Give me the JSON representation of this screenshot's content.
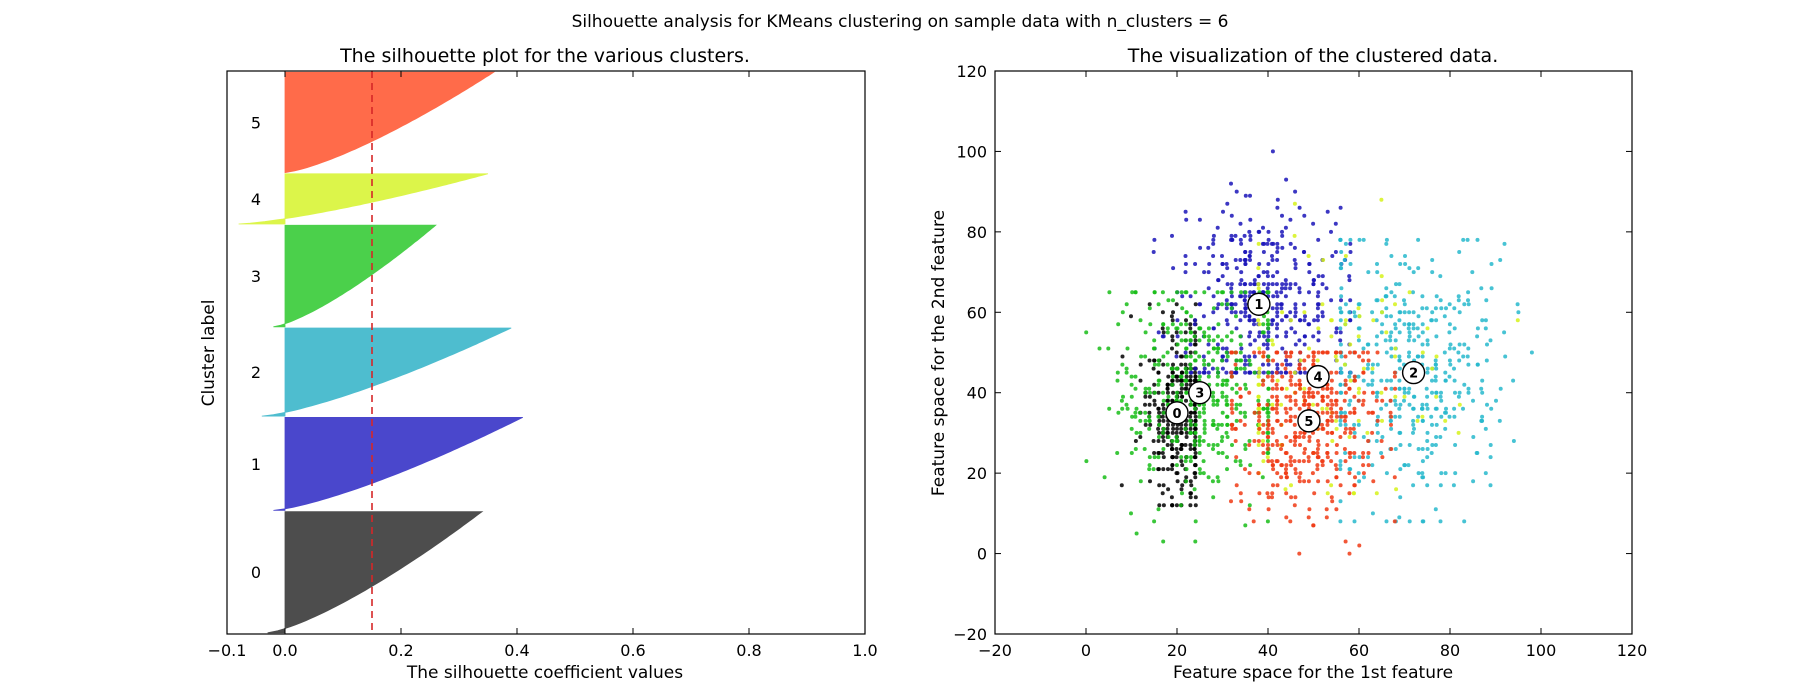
{
  "figure": {
    "suptitle": "Silhouette analysis for KMeans clustering on sample data with n_clusters = 6"
  },
  "chart_data": [
    {
      "type": "area",
      "title": "The silhouette plot for the various clusters.",
      "xlabel": "The silhouette coefficient values",
      "ylabel": "Cluster label",
      "xlim": [
        -0.1,
        1.0
      ],
      "xticks": [
        -0.1,
        0.0,
        0.2,
        0.4,
        0.6,
        0.8,
        1.0
      ],
      "xtick_labels": [
        "−0.1",
        "0.0",
        "0.2",
        "0.4",
        "0.6",
        "0.8",
        "1.0"
      ],
      "yticks": [],
      "grid": false,
      "average_silhouette": 0.15,
      "average_line_color": "#d62728",
      "clusters": [
        {
          "label": "0",
          "color": "#4d4d4d",
          "size": 990,
          "max": 0.34,
          "min": -0.03
        },
        {
          "label": "1",
          "color": "#4a47cc",
          "size": 760,
          "max": 0.41,
          "min": -0.02
        },
        {
          "label": "2",
          "color": "#4ebdcf",
          "size": 720,
          "max": 0.39,
          "min": -0.04
        },
        {
          "label": "3",
          "color": "#4bd04b",
          "size": 830,
          "max": 0.26,
          "min": -0.02
        },
        {
          "label": "4",
          "color": "#dcf54a",
          "size": 410,
          "max": 0.35,
          "min": -0.08
        },
        {
          "label": "5",
          "color": "#ff6b4a",
          "size": 820,
          "max": 0.36,
          "min": 0.0
        }
      ]
    },
    {
      "type": "scatter",
      "title": "The visualization of the clustered data.",
      "xlabel": "Feature space for the 1st feature",
      "ylabel": "Feature space for the 2nd feature",
      "xlim": [
        -20,
        120
      ],
      "ylim": [
        -20,
        120
      ],
      "xticks": [
        -20,
        0,
        20,
        40,
        60,
        80,
        100,
        120
      ],
      "xtick_labels": [
        "−20",
        "0",
        "20",
        "40",
        "60",
        "80",
        "100",
        "120"
      ],
      "yticks": [
        -20,
        0,
        20,
        40,
        60,
        80,
        100,
        120
      ],
      "ytick_labels": [
        "−20",
        "0",
        "20",
        "40",
        "60",
        "80",
        "100",
        "120"
      ],
      "grid": false,
      "centers": [
        {
          "label": "0",
          "x": 20,
          "y": 35
        },
        {
          "label": "1",
          "x": 38,
          "y": 62
        },
        {
          "label": "2",
          "x": 72,
          "y": 45
        },
        {
          "label": "3",
          "x": 25,
          "y": 40
        },
        {
          "label": "4",
          "x": 51,
          "y": 44
        },
        {
          "label": "5",
          "x": 49,
          "y": 33
        }
      ],
      "cluster_points": [
        {
          "label": "0",
          "color": "#000000",
          "count": 330,
          "x_range": [
            8,
            24
          ],
          "y_range": [
            12,
            62
          ]
        },
        {
          "label": "1",
          "color": "#1a14b8",
          "count": 420,
          "x_range": [
            15,
            58
          ],
          "y_range": [
            45,
            100
          ]
        },
        {
          "label": "2",
          "color": "#27b8cc",
          "count": 420,
          "x_range": [
            56,
            100
          ],
          "y_range": [
            8,
            78
          ]
        },
        {
          "label": "3",
          "color": "#18bd18",
          "count": 420,
          "x_range": [
            0,
            40
          ],
          "y_range": [
            3,
            65
          ]
        },
        {
          "label": "4",
          "color": "#d6f21a",
          "count": 120,
          "x_range": [
            38,
            95
          ],
          "y_range": [
            15,
            88
          ]
        },
        {
          "label": "5",
          "color": "#f03a14",
          "count": 420,
          "x_range": [
            32,
            68
          ],
          "y_range": [
            0,
            50
          ]
        }
      ]
    }
  ]
}
